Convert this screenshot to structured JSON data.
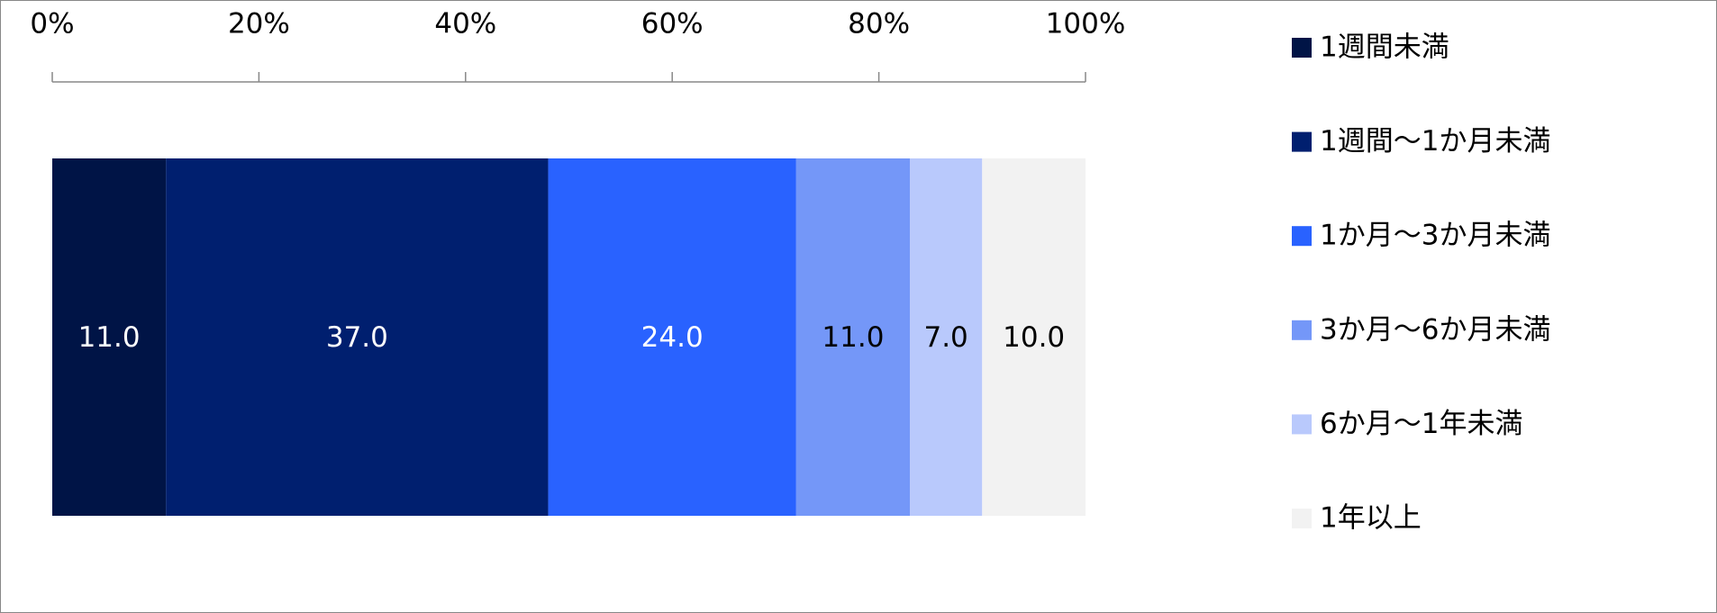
{
  "chart_data": {
    "type": "stacked-bar-horizontal",
    "categories": [
      null
    ],
    "series": [
      {
        "name": "1週間未満",
        "color": "#001446",
        "values": [
          11
        ],
        "value_labels": [
          "11.0"
        ]
      },
      {
        "name": "1週間～1か月未満",
        "color": "#001f6f",
        "values": [
          37
        ],
        "value_labels": [
          "37.0"
        ]
      },
      {
        "name": "1か月～3か月未満",
        "color": "#2962ff",
        "values": [
          24
        ],
        "value_labels": [
          "24.0"
        ]
      },
      {
        "name": "3か月～6か月未満",
        "color": "#7497f8",
        "values": [
          11
        ],
        "value_labels": [
          "11.0"
        ]
      },
      {
        "name": "6か月～1年未満",
        "color": "#b9c9fc",
        "values": [
          7
        ],
        "value_labels": [
          "7.0"
        ]
      },
      {
        "name": "1年以上",
        "color": "#f2f2f2",
        "values": [
          10
        ],
        "value_labels": [
          "10.0"
        ]
      }
    ],
    "xlim": [
      0,
      100
    ],
    "xticks": [
      {
        "value": 0,
        "label": "0%"
      },
      {
        "value": 20,
        "label": "20%"
      },
      {
        "value": 40,
        "label": "40%"
      },
      {
        "value": 60,
        "label": "60%"
      },
      {
        "value": 80,
        "label": "80%"
      },
      {
        "value": 100,
        "label": "100%"
      }
    ],
    "legend": "right"
  }
}
